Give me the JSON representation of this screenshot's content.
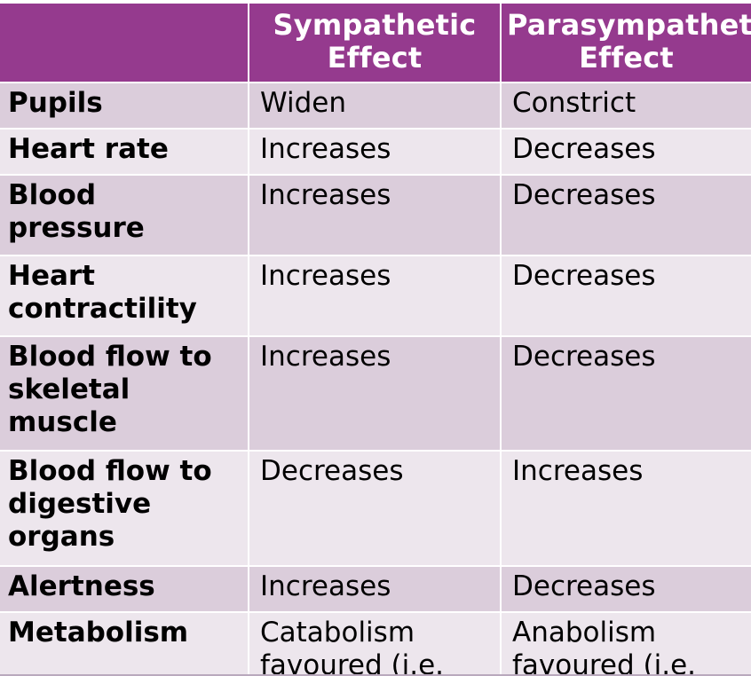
{
  "colors": {
    "header_bg": "#953a8e",
    "row_dark": "#dbcddb",
    "row_light": "#ede6ed"
  },
  "table": {
    "headers": [
      "",
      "Sympathetic Effect",
      "Parasympathetic Effect"
    ],
    "rows": [
      {
        "label": "Pupils",
        "sympathetic": "Widen",
        "parasympathetic": "Constrict"
      },
      {
        "label": "Heart rate",
        "sympathetic": "Increases",
        "parasympathetic": "Decreases"
      },
      {
        "label": "Blood pressure",
        "sympathetic": "Increases",
        "parasympathetic": "Decreases"
      },
      {
        "label": "Heart contractility",
        "sympathetic": "Increases",
        "parasympathetic": "Decreases"
      },
      {
        "label": "Blood flow to skeletal muscle",
        "sympathetic": "Increases",
        "parasympathetic": "Decreases"
      },
      {
        "label": "Blood flow to digestive organs",
        "sympathetic": "Decreases",
        "parasympathetic": "Increases"
      },
      {
        "label": "Alertness",
        "sympathetic": "Increases",
        "parasympathetic": "Decreases"
      },
      {
        "label": "Metabolism",
        "sympathetic": "Catabolism favoured (i.e.",
        "parasympathetic": "Anabolism favoured (i.e."
      }
    ]
  }
}
